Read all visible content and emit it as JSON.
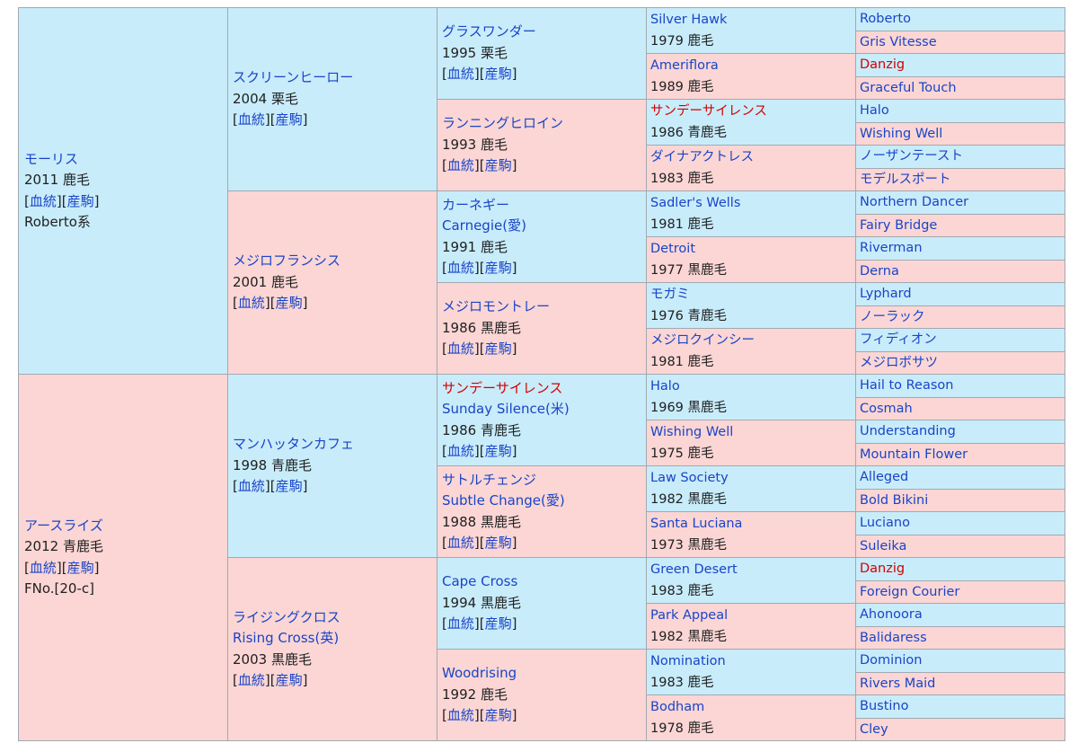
{
  "labels": {
    "lineage": "血統",
    "progeny": "産駒"
  },
  "sire": {
    "name": "モーリス",
    "year_color": "2011 鹿毛",
    "line": "Roberto系"
  },
  "dam": {
    "name": "アースライズ",
    "year_color": "2012 青鹿毛",
    "family": "FNo.[20-c]"
  },
  "gen2": [
    {
      "name": "スクリーンヒーロー",
      "year_color": "2004 栗毛"
    },
    {
      "name": "メジロフランシス",
      "year_color": "2001 鹿毛"
    },
    {
      "name": "マンハッタンカフェ",
      "year_color": "1998 青鹿毛"
    },
    {
      "name": "ライジングクロス",
      "alt": "Rising Cross(英)",
      "year_color": "2003 黒鹿毛"
    }
  ],
  "gen3": [
    {
      "name": "グラスワンダー",
      "year_color": "1995 栗毛"
    },
    {
      "name": "ランニングヒロイン",
      "year_color": "1993 鹿毛"
    },
    {
      "name": "カーネギー",
      "alt": "Carnegie(愛)",
      "year_color": "1991 鹿毛"
    },
    {
      "name": "メジロモントレー",
      "year_color": "1986 黒鹿毛"
    },
    {
      "name": "サンデーサイレンス",
      "alt": "Sunday Silence(米)",
      "year_color": "1986 青鹿毛"
    },
    {
      "name": "サトルチェンジ",
      "alt": "Subtle Change(愛)",
      "year_color": "1988 黒鹿毛"
    },
    {
      "name": "Cape Cross",
      "year_color": "1994 黒鹿毛"
    },
    {
      "name": "Woodrising",
      "year_color": "1992 鹿毛"
    }
  ],
  "gen4": [
    {
      "name": "Silver Hawk",
      "year_color": "1979 鹿毛"
    },
    {
      "name": "Ameriflora",
      "year_color": "1989 鹿毛"
    },
    {
      "name": "サンデーサイレンス",
      "year_color": "1986 青鹿毛"
    },
    {
      "name": "ダイナアクトレス",
      "year_color": "1983 鹿毛"
    },
    {
      "name": "Sadler's Wells",
      "year_color": "1981 鹿毛"
    },
    {
      "name": "Detroit",
      "year_color": "1977 黒鹿毛"
    },
    {
      "name": "モガミ",
      "year_color": "1976 青鹿毛"
    },
    {
      "name": "メジロクインシー",
      "year_color": "1981 鹿毛"
    },
    {
      "name": "Halo",
      "year_color": "1969 黒鹿毛"
    },
    {
      "name": "Wishing Well",
      "year_color": "1975 鹿毛"
    },
    {
      "name": "Law Society",
      "year_color": "1982 黒鹿毛"
    },
    {
      "name": "Santa Luciana",
      "year_color": "1973 黒鹿毛"
    },
    {
      "name": "Green Desert",
      "year_color": "1983 鹿毛"
    },
    {
      "name": "Park Appeal",
      "year_color": "1982 黒鹿毛"
    },
    {
      "name": "Nomination",
      "year_color": "1983 鹿毛"
    },
    {
      "name": "Bodham",
      "year_color": "1978 鹿毛"
    }
  ],
  "gen5": [
    "Roberto",
    "Gris Vitesse",
    "Danzig",
    "Graceful Touch",
    "Halo",
    "Wishing Well",
    "ノーザンテースト",
    "モデルスポート",
    "Northern Dancer",
    "Fairy Bridge",
    "Riverman",
    "Derna",
    "Lyphard",
    "ノーラック",
    "フィディオン",
    "メジロボサツ",
    "Hail to Reason",
    "Cosmah",
    "Understanding",
    "Mountain Flower",
    "Alleged",
    "Bold Bikini",
    "Luciano",
    "Suleika",
    "Danzig",
    "Foreign Courier",
    "Ahonoora",
    "Balidaress",
    "Dominion",
    "Rivers Maid",
    "Bustino",
    "Cley"
  ],
  "colors": {
    "male_bg": "#c8ecfa",
    "female_bg": "#fbd6d4",
    "link": "#1a44c8",
    "notable": "#d40000",
    "border": "#a2a9b1"
  }
}
